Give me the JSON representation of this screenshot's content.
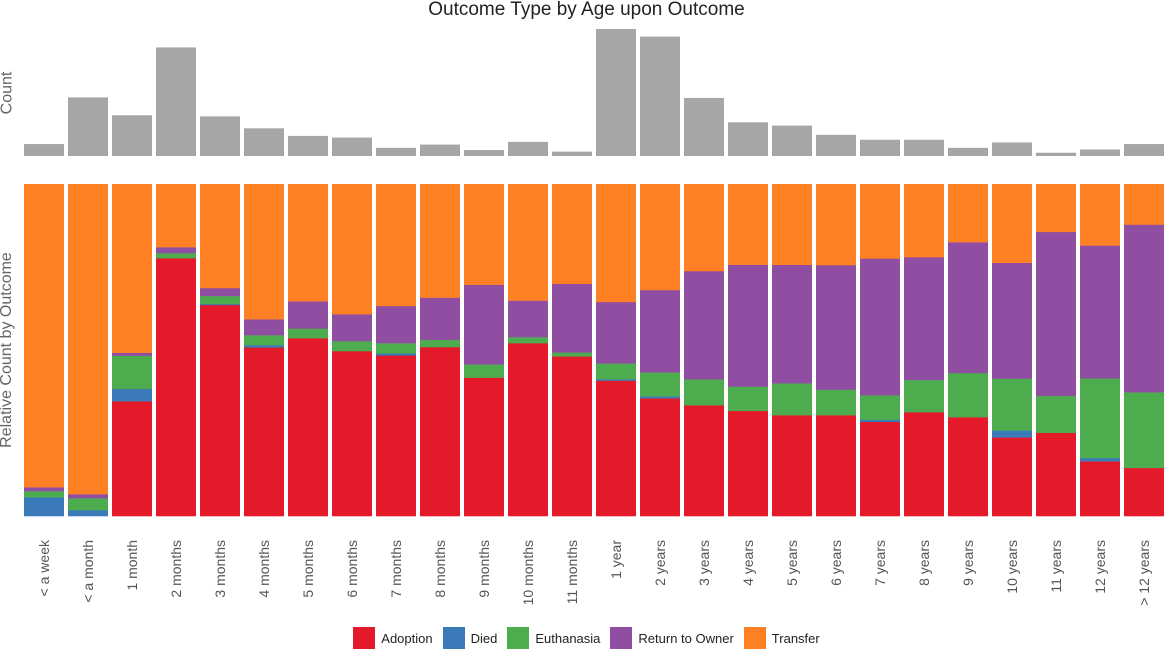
{
  "chart_data": [
    {
      "type": "bar",
      "title": "Outcome Type by Age upon Outcome",
      "ylabel": "Count",
      "categories": [
        "< a week",
        "< a month",
        "1 month",
        "2 months",
        "3 months",
        "4 months",
        "5 months",
        "6 months",
        "7 months",
        "8 months",
        "9 months",
        "10 months",
        "11 months",
        "1 year",
        "2 years",
        "3 years",
        "4 years",
        "5 years",
        "6 years",
        "7 years",
        "8 years",
        "9 years",
        "10 years",
        "11 years",
        "12 years",
        "> 12 years"
      ],
      "values": [
        110,
        540,
        375,
        1000,
        365,
        255,
        185,
        170,
        75,
        105,
        55,
        130,
        40,
        1170,
        1100,
        535,
        310,
        280,
        195,
        150,
        150,
        75,
        125,
        30,
        60,
        110
      ],
      "color": "#a6a6a6"
    },
    {
      "type": "bar",
      "stacked": true,
      "normalized": true,
      "ylabel": "Relative Count by Outcome",
      "ylim": [
        0,
        1
      ],
      "categories": [
        "< a week",
        "< a month",
        "1 month",
        "2 months",
        "3 months",
        "4 months",
        "5 months",
        "6 months",
        "7 months",
        "8 months",
        "9 months",
        "10 months",
        "11 months",
        "1 year",
        "2 years",
        "3 years",
        "4 years",
        "5 years",
        "6 years",
        "7 years",
        "8 years",
        "9 years",
        "10 years",
        "11 years",
        "12 years",
        "> 12 years"
      ],
      "series": [
        {
          "name": "Adoption",
          "color": "#e41a2b",
          "values": [
            0.0,
            0.0,
            0.346,
            0.777,
            0.636,
            0.508,
            0.536,
            0.497,
            0.484,
            0.509,
            0.417,
            0.521,
            0.481,
            0.408,
            0.355,
            0.334,
            0.317,
            0.304,
            0.304,
            0.284,
            0.313,
            0.298,
            0.237,
            0.251,
            0.165,
            0.145
          ]
        },
        {
          "name": "Died",
          "color": "#3a7ab8",
          "values": [
            0.057,
            0.018,
            0.037,
            0.0,
            0.003,
            0.007,
            0.0,
            0.0,
            0.006,
            0.0,
            0.0,
            0.0,
            0.0,
            0.004,
            0.006,
            0.0,
            0.0,
            0.0,
            0.0,
            0.006,
            0.0,
            0.0,
            0.021,
            0.0,
            0.01,
            0.0
          ]
        },
        {
          "name": "Euthanasia",
          "color": "#4dac4e",
          "values": [
            0.018,
            0.036,
            0.1,
            0.015,
            0.024,
            0.03,
            0.029,
            0.03,
            0.031,
            0.022,
            0.04,
            0.018,
            0.012,
            0.048,
            0.072,
            0.078,
            0.073,
            0.096,
            0.077,
            0.074,
            0.097,
            0.133,
            0.156,
            0.111,
            0.24,
            0.228
          ]
        },
        {
          "name": "Return to Owner",
          "color": "#904ea3",
          "values": [
            0.012,
            0.012,
            0.009,
            0.018,
            0.024,
            0.048,
            0.082,
            0.081,
            0.112,
            0.127,
            0.24,
            0.11,
            0.207,
            0.185,
            0.248,
            0.326,
            0.367,
            0.357,
            0.375,
            0.412,
            0.37,
            0.394,
            0.349,
            0.494,
            0.4,
            0.505
          ]
        },
        {
          "name": "Transfer",
          "color": "#ff7f24",
          "values": [
            0.913,
            0.934,
            0.508,
            0.19,
            0.313,
            0.407,
            0.353,
            0.392,
            0.367,
            0.342,
            0.303,
            0.351,
            0.3,
            0.355,
            0.319,
            0.262,
            0.243,
            0.243,
            0.244,
            0.224,
            0.22,
            0.175,
            0.237,
            0.144,
            0.185,
            0.122
          ]
        }
      ]
    }
  ]
}
